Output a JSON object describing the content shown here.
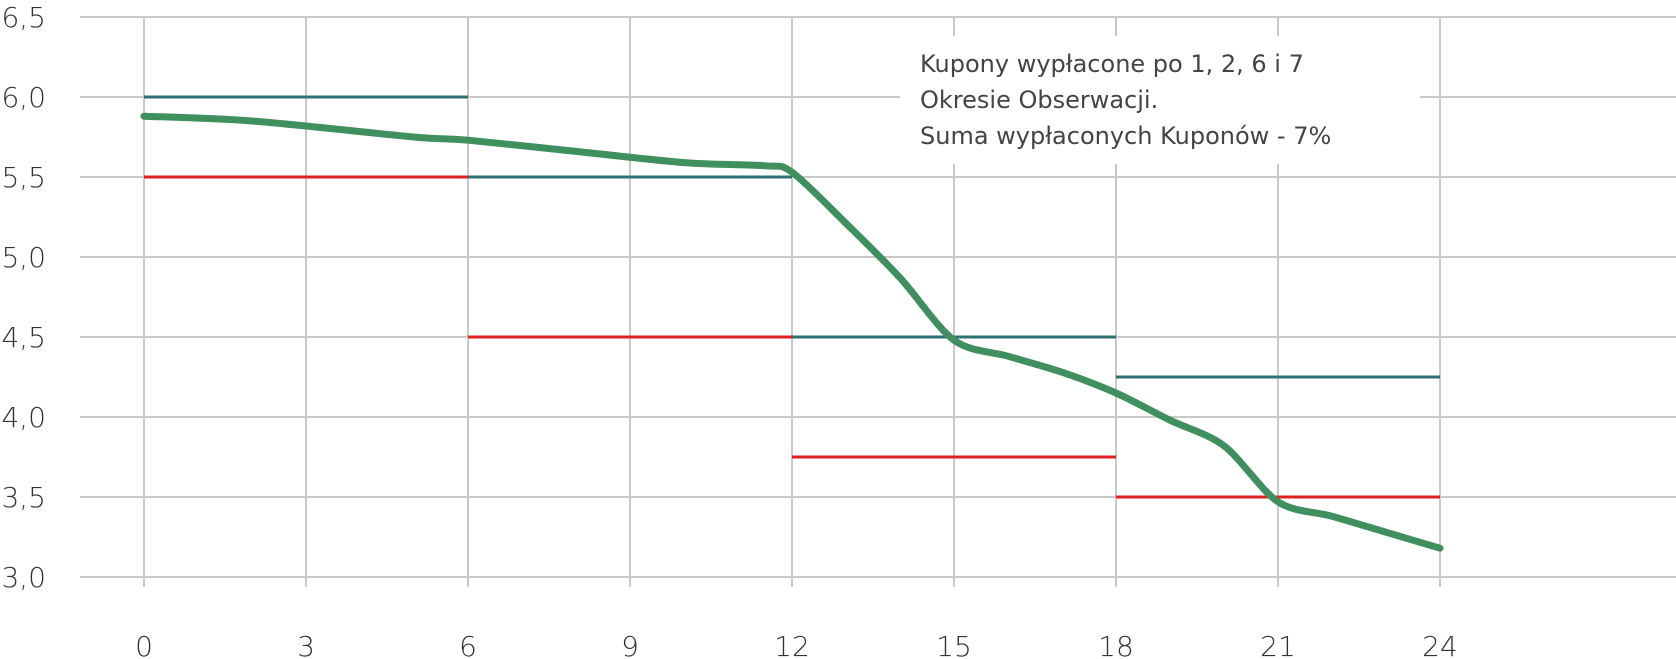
{
  "chart_data": {
    "type": "line",
    "title": "",
    "xlabel": "",
    "ylabel": "",
    "xlim": [
      0,
      24
    ],
    "ylim": [
      3.0,
      6.5
    ],
    "x_ticks": [
      "0",
      "3",
      "6",
      "9",
      "12",
      "15",
      "18",
      "21",
      "24"
    ],
    "y_ticks": [
      "3,0",
      "3,5",
      "4,0",
      "4,5",
      "5,0",
      "5,5",
      "6,0",
      "6,5"
    ],
    "grid": true,
    "annotation": {
      "lines": [
        "Kupony wypłacone po 1, 2, 6 i 7",
        "Okresie Obserwacji.",
        "Suma wypłaconych Kuponów - 7%"
      ]
    },
    "series": [
      {
        "type": "line",
        "color": "#3f8f5f",
        "x": [
          0,
          2,
          5,
          6,
          8,
          10,
          11.5,
          12,
          13,
          14,
          15,
          16,
          17,
          18,
          19,
          20,
          21,
          22,
          23,
          24
        ],
        "y": [
          5.88,
          5.85,
          5.75,
          5.73,
          5.66,
          5.59,
          5.57,
          5.53,
          5.21,
          4.87,
          4.48,
          4.38,
          4.28,
          4.15,
          3.98,
          3.82,
          3.47,
          3.38,
          3.28,
          3.18
        ]
      }
    ],
    "barrier_levels": [
      {
        "color": "#2e6f6f",
        "x0": 0,
        "x1": 6,
        "y": 6.0
      },
      {
        "color": "#2e6f6f",
        "x0": 6,
        "x1": 12,
        "y": 5.5
      },
      {
        "color": "#2e6f6f",
        "x0": 12,
        "x1": 18,
        "y": 4.5
      },
      {
        "color": "#2e6f6f",
        "x0": 18,
        "x1": 24,
        "y": 4.25
      },
      {
        "color": "#e02020",
        "x0": 0,
        "x1": 6,
        "y": 5.5
      },
      {
        "color": "#e02020",
        "x0": 6,
        "x1": 12,
        "y": 4.5
      },
      {
        "color": "#e02020",
        "x0": 12,
        "x1": 18,
        "y": 3.75
      },
      {
        "color": "#e02020",
        "x0": 18,
        "x1": 24,
        "y": 3.5
      }
    ]
  }
}
